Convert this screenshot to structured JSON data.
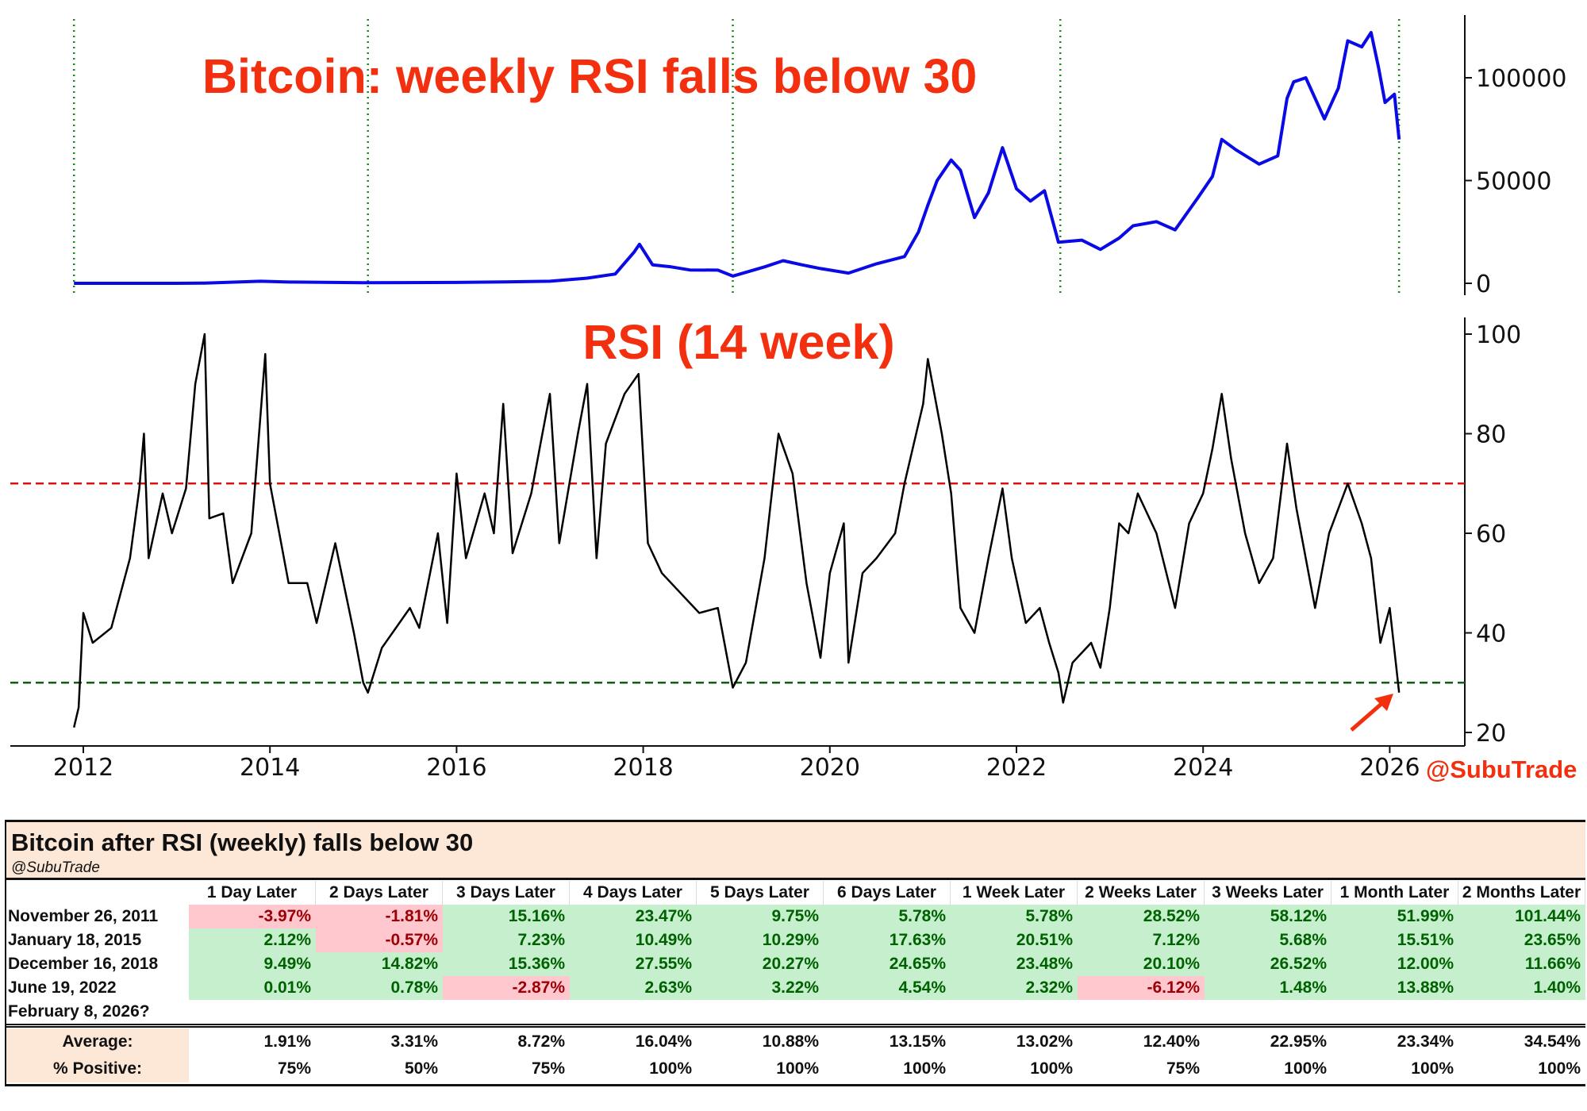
{
  "chart_data": [
    {
      "type": "line",
      "title": "Bitcoin: weekly RSI falls below 30",
      "y_ticks": [
        0,
        50000,
        100000
      ],
      "ylim": [
        -8000,
        128000
      ],
      "xlim": [
        2011.6,
        2026.5
      ],
      "colors": {
        "series": "#0a0ae6",
        "event_lines": "#1a8a1a",
        "title": "#f2300f"
      },
      "event_dates": [
        2011.9,
        2015.05,
        2018.96,
        2022.47,
        2026.1
      ],
      "series": [
        {
          "x": [
            2011.9,
            2012.5,
            2013.0,
            2013.3,
            2013.9,
            2014.2,
            2015.0,
            2016.0,
            2016.5,
            2017.0,
            2017.4,
            2017.7,
            2017.9,
            2017.96,
            2018.1,
            2018.3,
            2018.5,
            2018.8,
            2018.96,
            2019.3,
            2019.5,
            2019.7,
            2019.9,
            2020.2,
            2020.5,
            2020.8,
            2020.95,
            2021.05,
            2021.15,
            2021.3,
            2021.4,
            2021.55,
            2021.7,
            2021.85,
            2022.0,
            2022.15,
            2022.3,
            2022.45,
            2022.7,
            2022.9,
            2023.1,
            2023.25,
            2023.5,
            2023.7,
            2023.95,
            2024.1,
            2024.2,
            2024.35,
            2024.6,
            2024.8,
            2024.9,
            2024.97,
            2025.1,
            2025.3,
            2025.45,
            2025.55,
            2025.7,
            2025.8,
            2025.88,
            2025.95,
            2026.05,
            2026.1
          ],
          "y": [
            3,
            7,
            13,
            100,
            1000,
            600,
            300,
            430,
            650,
            1000,
            2500,
            4500,
            15000,
            19000,
            9000,
            8000,
            6500,
            6400,
            3500,
            8000,
            11000,
            9000,
            7200,
            5000,
            9500,
            13000,
            25000,
            38000,
            50000,
            60000,
            55000,
            32000,
            44000,
            66000,
            46000,
            40000,
            45000,
            20000,
            21000,
            16500,
            22000,
            28000,
            30000,
            26000,
            42000,
            52000,
            70000,
            65000,
            58000,
            62000,
            90000,
            98000,
            100000,
            80000,
            95000,
            118000,
            115000,
            122000,
            105000,
            88000,
            92000,
            70000
          ]
        }
      ]
    },
    {
      "type": "line",
      "title": "RSI (14 week)",
      "y_ticks": [
        20,
        40,
        60,
        80,
        100
      ],
      "ylim": [
        17,
        103
      ],
      "xlim": [
        2011.6,
        2026.5
      ],
      "x_ticks": [
        "2012",
        "2014",
        "2016",
        "2018",
        "2020",
        "2022",
        "2024",
        "2026"
      ],
      "reference_lines": [
        {
          "y": 70,
          "color": "#e01010",
          "style": "dashed"
        },
        {
          "y": 30,
          "color": "#106010",
          "style": "dashed"
        }
      ],
      "series": [
        {
          "x": [
            2011.9,
            2011.95,
            2012.0,
            2012.1,
            2012.3,
            2012.5,
            2012.6,
            2012.65,
            2012.7,
            2012.85,
            2012.95,
            2013.1,
            2013.2,
            2013.3,
            2013.35,
            2013.5,
            2013.6,
            2013.8,
            2013.95,
            2014.0,
            2014.1,
            2014.2,
            2014.4,
            2014.5,
            2014.7,
            2014.9,
            2015.0,
            2015.05,
            2015.2,
            2015.5,
            2015.6,
            2015.8,
            2015.9,
            2016.0,
            2016.1,
            2016.3,
            2016.4,
            2016.5,
            2016.6,
            2016.8,
            2016.9,
            2017.0,
            2017.1,
            2017.3,
            2017.4,
            2017.5,
            2017.6,
            2017.8,
            2017.95,
            2018.05,
            2018.2,
            2018.4,
            2018.6,
            2018.8,
            2018.96,
            2019.1,
            2019.3,
            2019.45,
            2019.6,
            2019.75,
            2019.9,
            2020.0,
            2020.15,
            2020.2,
            2020.35,
            2020.5,
            2020.7,
            2020.8,
            2021.0,
            2021.05,
            2021.2,
            2021.3,
            2021.4,
            2021.55,
            2021.7,
            2021.85,
            2021.95,
            2022.1,
            2022.25,
            2022.35,
            2022.45,
            2022.5,
            2022.6,
            2022.8,
            2022.9,
            2023.0,
            2023.1,
            2023.2,
            2023.3,
            2023.5,
            2023.7,
            2023.85,
            2024.0,
            2024.1,
            2024.2,
            2024.3,
            2024.45,
            2024.6,
            2024.75,
            2024.9,
            2025.0,
            2025.2,
            2025.35,
            2025.55,
            2025.7,
            2025.8,
            2025.9,
            2026.0,
            2026.1
          ],
          "y": [
            21,
            25,
            44,
            38,
            41,
            55,
            69,
            80,
            55,
            68,
            60,
            69,
            90,
            100,
            63,
            64,
            50,
            60,
            96,
            70,
            60,
            50,
            50,
            42,
            58,
            40,
            30,
            28,
            37,
            45,
            41,
            60,
            42,
            72,
            55,
            68,
            60,
            86,
            56,
            68,
            78,
            88,
            58,
            80,
            90,
            55,
            78,
            88,
            92,
            58,
            52,
            48,
            44,
            45,
            29,
            34,
            55,
            80,
            72,
            50,
            35,
            52,
            62,
            34,
            52,
            55,
            60,
            70,
            86,
            95,
            80,
            68,
            45,
            40,
            55,
            69,
            55,
            42,
            45,
            38,
            32,
            26,
            34,
            38,
            33,
            45,
            62,
            60,
            68,
            60,
            45,
            62,
            68,
            77,
            88,
            75,
            60,
            50,
            55,
            78,
            65,
            45,
            60,
            70,
            62,
            55,
            38,
            45,
            28
          ]
        }
      ]
    }
  ],
  "watermark": "@SubuTrade",
  "table": {
    "title": "Bitcoin after RSI (weekly) falls below 30",
    "subtitle": "@SubuTrade",
    "headers": [
      "1 Day Later",
      "2 Days Later",
      "3 Days Later",
      "4 Days Later",
      "5 Days Later",
      "6 Days Later",
      "1 Week Later",
      "2 Weeks Later",
      "3 Weeks Later",
      "1 Month Later",
      "2 Months Later"
    ],
    "rows": [
      {
        "date": "November 26, 2011",
        "values": [
          "-3.97%",
          "-1.81%",
          "15.16%",
          "23.47%",
          "9.75%",
          "5.78%",
          "5.78%",
          "28.52%",
          "58.12%",
          "51.99%",
          "101.44%"
        ]
      },
      {
        "date": "January 18, 2015",
        "values": [
          "2.12%",
          "-0.57%",
          "7.23%",
          "10.49%",
          "10.29%",
          "17.63%",
          "20.51%",
          "7.12%",
          "5.68%",
          "15.51%",
          "23.65%"
        ]
      },
      {
        "date": "December 16, 2018",
        "values": [
          "9.49%",
          "14.82%",
          "15.36%",
          "27.55%",
          "20.27%",
          "24.65%",
          "23.48%",
          "20.10%",
          "26.52%",
          "12.00%",
          "11.66%"
        ]
      },
      {
        "date": "June 19, 2022",
        "values": [
          "0.01%",
          "0.78%",
          "-2.87%",
          "2.63%",
          "3.22%",
          "4.54%",
          "2.32%",
          "-6.12%",
          "1.48%",
          "13.88%",
          "1.40%"
        ]
      },
      {
        "date": "February 8, 2026?",
        "values": []
      }
    ],
    "average": {
      "label": "Average:",
      "values": [
        "1.91%",
        "3.31%",
        "8.72%",
        "16.04%",
        "10.88%",
        "13.15%",
        "13.02%",
        "12.40%",
        "22.95%",
        "23.34%",
        "34.54%"
      ]
    },
    "positive": {
      "label": "% Positive:",
      "values": [
        "75%",
        "50%",
        "75%",
        "100%",
        "100%",
        "100%",
        "100%",
        "75%",
        "100%",
        "100%",
        "100%"
      ]
    },
    "colors": {
      "positive_bg": "#c6efce",
      "positive_text": "#006100",
      "negative_bg": "#ffc7ce",
      "negative_text": "#9c0006",
      "header_bg": "#fde8d8"
    }
  }
}
